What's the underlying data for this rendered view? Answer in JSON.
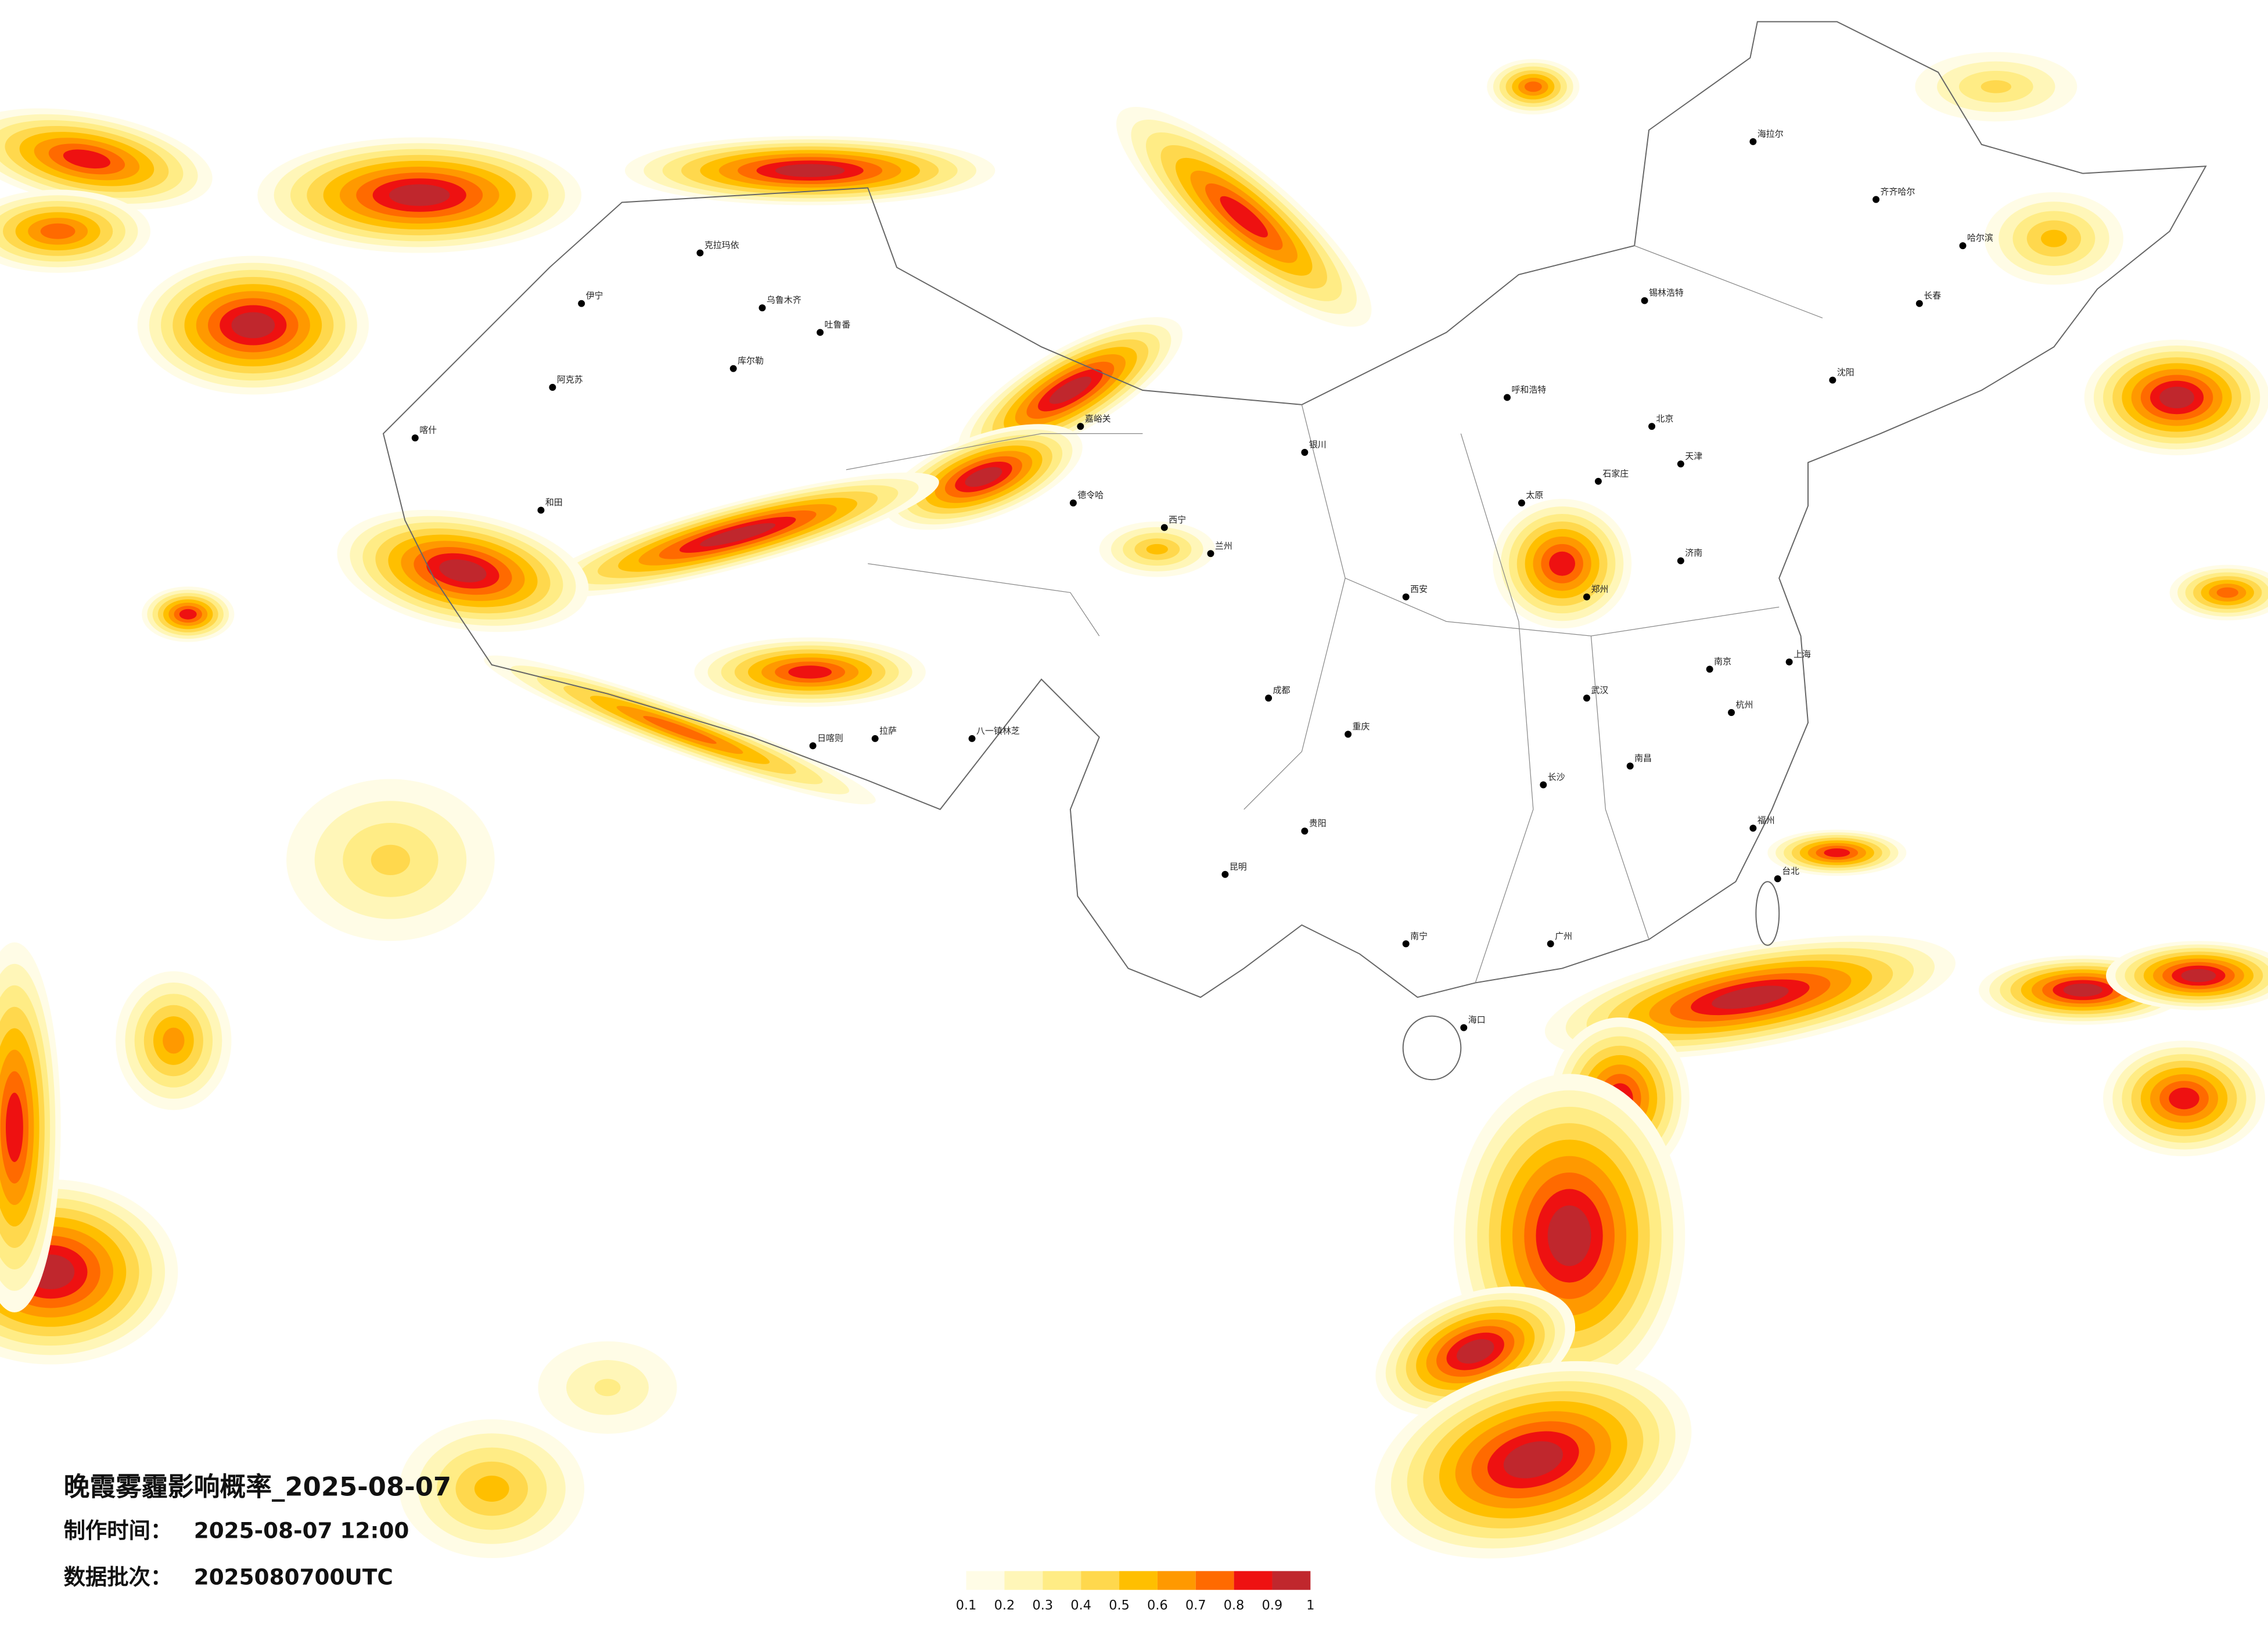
{
  "title": "晚霞雾霾影响概率_2025-08-07",
  "info": [
    {
      "label": "制作时间：",
      "value": "2025-08-07 12:00"
    },
    {
      "label": "数据批次：",
      "value": "2025080700UTC"
    }
  ],
  "legend": {
    "ticks": [
      0.1,
      0.2,
      0.3,
      0.4,
      0.5,
      0.6,
      0.7,
      0.8,
      0.9,
      1
    ],
    "colors": [
      "#fffce6",
      "#fff6b8",
      "#ffec85",
      "#ffd84d",
      "#ffbf00",
      "#ff9900",
      "#ff6a00",
      "#ee1111",
      "#c0272d"
    ]
  },
  "cities": [
    "克拉玛依",
    "伊宁",
    "乌鲁木齐",
    "吐鲁番",
    "阿克苏",
    "库尔勒",
    "和田",
    "喀什",
    "嘉峪关",
    "德令哈",
    "拉萨",
    "日喀则",
    "八一镇林芝",
    "兰州",
    "西宁",
    "银川",
    "呼和浩特",
    "北京",
    "天津",
    "石家庄",
    "太原",
    "济南",
    "郑州",
    "西安",
    "成都",
    "重庆",
    "贵阳",
    "昆明",
    "南宁",
    "海口",
    "广州",
    "长沙",
    "武汉",
    "南昌",
    "杭州",
    "上海",
    "南京",
    "福州",
    "台北",
    "沈阳",
    "长春",
    "哈尔滨",
    "海拉尔",
    "锡林浩特",
    "齐齐哈尔"
  ]
}
